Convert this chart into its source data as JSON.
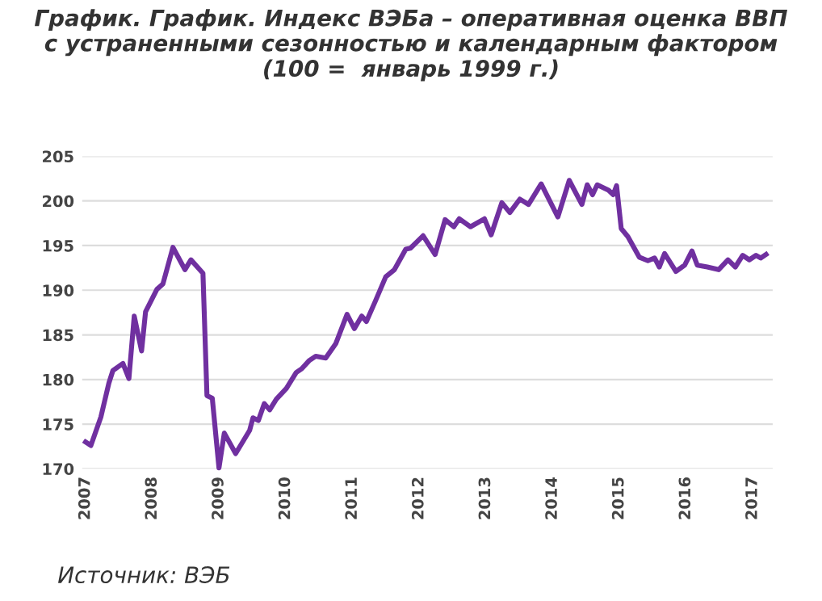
{
  "chart_data": {
    "type": "line",
    "title": "График. График. Индекс ВЭБа – оперативная оценка ВВП\nс устраненными сезонностью и календарным фактором\n(100 =  январь 1999 г.)",
    "series": [
      {
        "color": "#7030a0",
        "x": [
          2007.0,
          2007.08,
          2007.23,
          2007.35,
          2007.41,
          2007.56,
          2007.65,
          2007.73,
          2007.84,
          2007.9,
          2008.07,
          2008.16,
          2008.31,
          2008.49,
          2008.58,
          2008.76,
          2008.82,
          2008.9,
          2009.0,
          2009.08,
          2009.25,
          2009.46,
          2009.51,
          2009.59,
          2009.68,
          2009.76,
          2009.86,
          2010.01,
          2010.16,
          2010.24,
          2010.35,
          2010.45,
          2010.6,
          2010.75,
          2010.92,
          2011.03,
          2011.14,
          2011.21,
          2011.34,
          2011.5,
          2011.63,
          2011.8,
          2011.87,
          2012.06,
          2012.24,
          2012.39,
          2012.52,
          2012.6,
          2012.77,
          2012.98,
          2013.08,
          2013.24,
          2013.36,
          2013.51,
          2013.64,
          2013.83,
          2014.08,
          2014.25,
          2014.44,
          2014.52,
          2014.6,
          2014.67,
          2014.84,
          2014.91,
          2014.96,
          2015.03,
          2015.13,
          2015.3,
          2015.43,
          2015.53,
          2015.6,
          2015.68,
          2015.85,
          2015.98,
          2016.09,
          2016.17,
          2016.32,
          2016.49,
          2016.63,
          2016.74,
          2016.85,
          2016.95,
          2017.05,
          2017.12,
          2017.2
        ],
        "values": [
          173.0,
          172.6,
          175.8,
          179.6,
          181.0,
          181.8,
          180.1,
          187.1,
          183.2,
          187.6,
          190.1,
          190.7,
          194.8,
          192.3,
          193.4,
          191.9,
          178.2,
          177.9,
          170.1,
          174.0,
          171.7,
          174.3,
          175.7,
          175.4,
          177.3,
          176.6,
          177.8,
          179.0,
          180.8,
          181.2,
          182.1,
          182.6,
          182.4,
          184.0,
          187.3,
          185.7,
          187.1,
          186.5,
          188.7,
          191.5,
          192.3,
          194.6,
          194.7,
          196.1,
          194.0,
          197.9,
          197.1,
          198.0,
          197.1,
          198.0,
          196.2,
          199.8,
          198.7,
          200.2,
          199.6,
          201.9,
          198.2,
          202.3,
          199.6,
          201.8,
          200.7,
          201.8,
          201.2,
          200.7,
          201.7,
          196.9,
          196.0,
          193.7,
          193.3,
          193.6,
          192.6,
          194.1,
          192.1,
          192.8,
          194.4,
          192.8,
          192.6,
          192.3,
          193.4,
          192.6,
          193.9,
          193.4,
          193.9,
          193.6,
          194.0
        ]
      }
    ],
    "xlim": [
      2006.95,
      2017.3
    ],
    "xticks": [
      2007,
      2008,
      2009,
      2010,
      2011,
      2012,
      2013,
      2014,
      2015,
      2016,
      2017
    ],
    "ylim": [
      170,
      205
    ],
    "yticks": [
      170,
      175,
      180,
      185,
      190,
      195,
      200,
      205
    ],
    "grid": "y",
    "marker": "none",
    "line_style": "solid",
    "annotations": [
      "Источник: ВЭБ"
    ]
  }
}
